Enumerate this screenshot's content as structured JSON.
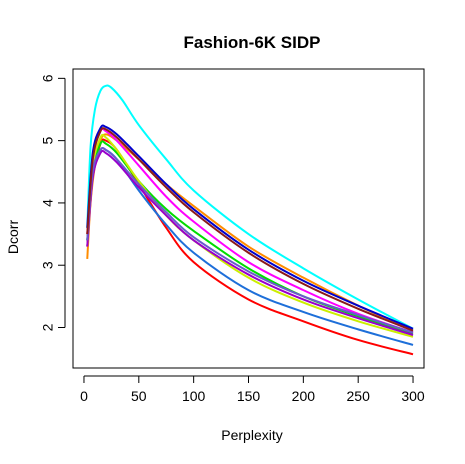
{
  "chart_data": {
    "type": "line",
    "title": "Fashion-6K SIDP",
    "xlabel": "Perplexity",
    "ylabel": "Dcorr",
    "xlim": [
      -10,
      310
    ],
    "ylim": [
      1.35,
      6.15
    ],
    "xticks": [
      0,
      50,
      100,
      150,
      200,
      250,
      300
    ],
    "yticks": [
      2,
      3,
      4,
      5,
      6
    ],
    "grid": false,
    "legend": "none",
    "series": [
      {
        "color": "#FF0000",
        "x": [
          3,
          8,
          15,
          20,
          30,
          50,
          75,
          100,
          150,
          200,
          250,
          300
        ],
        "y": [
          3.3,
          4.4,
          4.95,
          5.0,
          4.85,
          4.3,
          3.6,
          3.05,
          2.45,
          2.1,
          1.8,
          1.57
        ]
      },
      {
        "color": "#1E6FD9",
        "x": [
          3,
          8,
          15,
          20,
          30,
          50,
          75,
          100,
          150,
          200,
          250,
          300
        ],
        "y": [
          3.4,
          4.5,
          4.85,
          4.85,
          4.7,
          4.2,
          3.65,
          3.2,
          2.6,
          2.25,
          1.97,
          1.72
        ]
      },
      {
        "color": "#00FFFF",
        "x": [
          3,
          6,
          10,
          15,
          20,
          25,
          35,
          50,
          75,
          100,
          150,
          200,
          250,
          300
        ],
        "y": [
          3.6,
          4.9,
          5.5,
          5.8,
          5.88,
          5.85,
          5.65,
          5.25,
          4.7,
          4.2,
          3.5,
          2.95,
          2.45,
          1.98
        ]
      },
      {
        "color": "#FF8C00",
        "x": [
          3,
          6,
          10,
          15,
          20,
          30,
          50,
          75,
          100,
          150,
          200,
          250,
          300
        ],
        "y": [
          3.1,
          4.0,
          4.6,
          5.0,
          5.1,
          5.0,
          4.7,
          4.3,
          3.95,
          3.3,
          2.8,
          2.35,
          1.95
        ]
      },
      {
        "color": "#00DD00",
        "x": [
          3,
          8,
          15,
          20,
          30,
          50,
          75,
          100,
          150,
          200,
          250,
          300
        ],
        "y": [
          3.4,
          4.5,
          4.95,
          4.95,
          4.8,
          4.35,
          3.9,
          3.55,
          2.95,
          2.5,
          2.18,
          1.9
        ]
      },
      {
        "color": "#CCEE00",
        "x": [
          3,
          8,
          15,
          20,
          30,
          50,
          75,
          100,
          150,
          200,
          250,
          300
        ],
        "y": [
          3.5,
          4.6,
          5.05,
          5.05,
          4.85,
          4.35,
          3.8,
          3.4,
          2.8,
          2.4,
          2.1,
          1.85
        ]
      },
      {
        "color": "#FF00FF",
        "x": [
          3,
          8,
          15,
          20,
          30,
          50,
          75,
          100,
          150,
          200,
          250,
          300
        ],
        "y": [
          3.5,
          4.7,
          5.15,
          5.15,
          5.0,
          4.6,
          4.1,
          3.7,
          3.05,
          2.6,
          2.22,
          1.92
        ]
      },
      {
        "color": "#9900CC",
        "x": [
          3,
          8,
          15,
          20,
          30,
          50,
          75,
          100,
          150,
          200,
          250,
          300
        ],
        "y": [
          3.3,
          4.4,
          4.8,
          4.8,
          4.65,
          4.25,
          3.8,
          3.4,
          2.85,
          2.45,
          2.15,
          1.88
        ]
      },
      {
        "color": "#6A5ACD",
        "x": [
          3,
          8,
          15,
          20,
          30,
          50,
          75,
          100,
          150,
          200,
          250,
          300
        ],
        "y": [
          3.4,
          4.5,
          4.85,
          4.85,
          4.7,
          4.3,
          3.85,
          3.45,
          2.9,
          2.5,
          2.2,
          1.92
        ]
      },
      {
        "color": "#0000CC",
        "x": [
          3,
          8,
          15,
          20,
          30,
          50,
          75,
          100,
          150,
          200,
          250,
          300
        ],
        "y": [
          3.6,
          4.8,
          5.2,
          5.22,
          5.1,
          4.75,
          4.3,
          3.9,
          3.25,
          2.75,
          2.35,
          1.98
        ]
      },
      {
        "color": "#8B1A1A",
        "x": [
          3,
          8,
          15,
          20,
          30,
          50,
          75,
          100,
          150,
          200,
          250,
          300
        ],
        "y": [
          3.5,
          4.7,
          5.15,
          5.18,
          5.05,
          4.7,
          4.25,
          3.85,
          3.2,
          2.7,
          2.3,
          1.95
        ]
      }
    ]
  }
}
